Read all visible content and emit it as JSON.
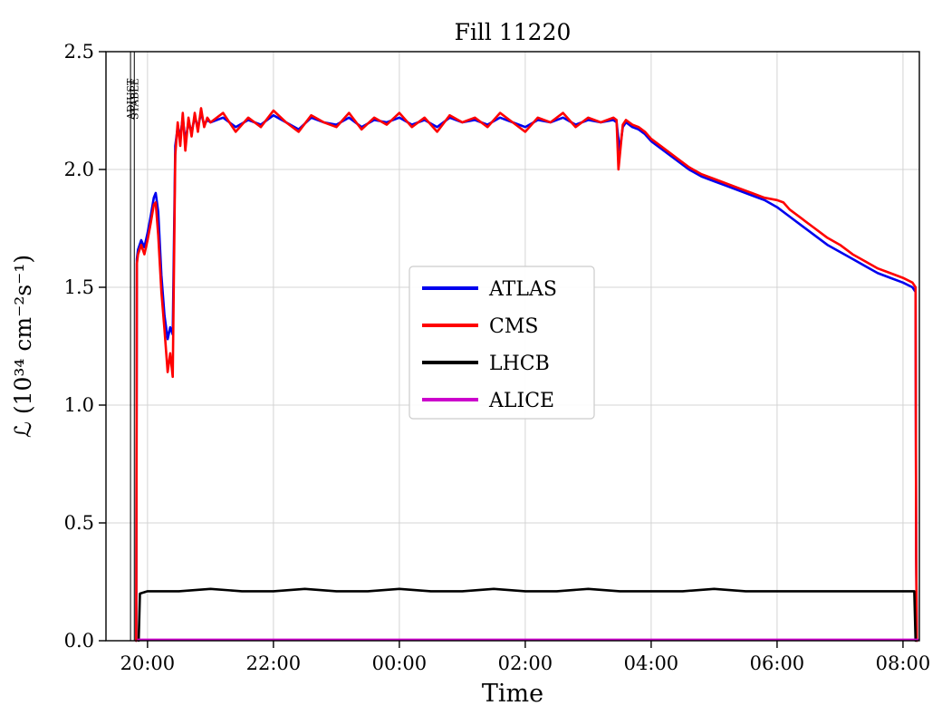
{
  "chart_data": {
    "type": "line",
    "title": "Fill 11220",
    "xlabel": "Time",
    "ylabel": "ℒ (10³⁴ cm⁻²s⁻¹)",
    "xlim": [
      19.34,
      32.26
    ],
    "ylim": [
      0,
      2.5
    ],
    "grid": true,
    "legend_position": "center",
    "x_ticks": [
      {
        "v": 20,
        "label": "20:00"
      },
      {
        "v": 22,
        "label": "22:00"
      },
      {
        "v": 24,
        "label": "00:00"
      },
      {
        "v": 26,
        "label": "02:00"
      },
      {
        "v": 28,
        "label": "04:00"
      },
      {
        "v": 30,
        "label": "06:00"
      },
      {
        "v": 32,
        "label": "08:00"
      }
    ],
    "y_ticks": [
      {
        "v": 0.0,
        "label": "0.0"
      },
      {
        "v": 0.5,
        "label": "0.5"
      },
      {
        "v": 1.0,
        "label": "1.0"
      },
      {
        "v": 1.5,
        "label": "1.5"
      },
      {
        "v": 2.0,
        "label": "2.0"
      },
      {
        "v": 2.5,
        "label": "2.5"
      }
    ],
    "annotations": [
      {
        "label": "ADJUST",
        "t": 19.73
      },
      {
        "label": "STABLE",
        "t": 19.79
      }
    ],
    "series": [
      {
        "name": "ATLAS",
        "color": "#0000ee",
        "width": 2.6,
        "points": [
          [
            19.82,
            0.0
          ],
          [
            19.83,
            1.62
          ],
          [
            19.85,
            1.66
          ],
          [
            19.9,
            1.7
          ],
          [
            19.95,
            1.67
          ],
          [
            20.0,
            1.73
          ],
          [
            20.05,
            1.8
          ],
          [
            20.1,
            1.88
          ],
          [
            20.13,
            1.9
          ],
          [
            20.17,
            1.82
          ],
          [
            20.22,
            1.55
          ],
          [
            20.27,
            1.38
          ],
          [
            20.32,
            1.28
          ],
          [
            20.36,
            1.33
          ],
          [
            20.4,
            1.3
          ],
          [
            20.44,
            2.1
          ],
          [
            20.48,
            2.18
          ],
          [
            20.52,
            2.14
          ],
          [
            20.56,
            2.22
          ],
          [
            20.6,
            2.12
          ],
          [
            20.65,
            2.2
          ],
          [
            20.7,
            2.16
          ],
          [
            20.75,
            2.22
          ],
          [
            20.8,
            2.18
          ],
          [
            20.85,
            2.24
          ],
          [
            20.9,
            2.19
          ],
          [
            20.95,
            2.21
          ],
          [
            21.0,
            2.2
          ],
          [
            21.2,
            2.22
          ],
          [
            21.4,
            2.18
          ],
          [
            21.6,
            2.21
          ],
          [
            21.8,
            2.19
          ],
          [
            22.0,
            2.23
          ],
          [
            22.2,
            2.2
          ],
          [
            22.4,
            2.17
          ],
          [
            22.6,
            2.22
          ],
          [
            22.8,
            2.2
          ],
          [
            23.0,
            2.19
          ],
          [
            23.2,
            2.22
          ],
          [
            23.4,
            2.18
          ],
          [
            23.6,
            2.21
          ],
          [
            23.8,
            2.2
          ],
          [
            24.0,
            2.22
          ],
          [
            24.2,
            2.19
          ],
          [
            24.4,
            2.21
          ],
          [
            24.6,
            2.18
          ],
          [
            24.8,
            2.22
          ],
          [
            25.0,
            2.2
          ],
          [
            25.2,
            2.21
          ],
          [
            25.4,
            2.19
          ],
          [
            25.6,
            2.22
          ],
          [
            25.8,
            2.2
          ],
          [
            26.0,
            2.18
          ],
          [
            26.2,
            2.21
          ],
          [
            26.4,
            2.2
          ],
          [
            26.6,
            2.22
          ],
          [
            26.8,
            2.19
          ],
          [
            27.0,
            2.21
          ],
          [
            27.2,
            2.2
          ],
          [
            27.4,
            2.21
          ],
          [
            27.45,
            2.2
          ],
          [
            27.5,
            2.08
          ],
          [
            27.55,
            2.18
          ],
          [
            27.6,
            2.2
          ],
          [
            27.7,
            2.18
          ],
          [
            27.8,
            2.17
          ],
          [
            27.9,
            2.15
          ],
          [
            28.0,
            2.12
          ],
          [
            28.2,
            2.08
          ],
          [
            28.4,
            2.04
          ],
          [
            28.6,
            2.0
          ],
          [
            28.8,
            1.97
          ],
          [
            29.0,
            1.95
          ],
          [
            29.2,
            1.93
          ],
          [
            29.4,
            1.91
          ],
          [
            29.6,
            1.89
          ],
          [
            29.8,
            1.87
          ],
          [
            30.0,
            1.84
          ],
          [
            30.2,
            1.8
          ],
          [
            30.4,
            1.76
          ],
          [
            30.6,
            1.72
          ],
          [
            30.8,
            1.68
          ],
          [
            31.0,
            1.65
          ],
          [
            31.2,
            1.62
          ],
          [
            31.4,
            1.59
          ],
          [
            31.6,
            1.56
          ],
          [
            31.8,
            1.54
          ],
          [
            32.0,
            1.52
          ],
          [
            32.15,
            1.5
          ],
          [
            32.2,
            1.48
          ],
          [
            32.21,
            0.35
          ],
          [
            32.22,
            0.0
          ]
        ]
      },
      {
        "name": "CMS",
        "color": "#ff0000",
        "width": 2.6,
        "points": [
          [
            19.82,
            0.0
          ],
          [
            19.83,
            1.6
          ],
          [
            19.85,
            1.64
          ],
          [
            19.9,
            1.68
          ],
          [
            19.95,
            1.64
          ],
          [
            20.0,
            1.7
          ],
          [
            20.05,
            1.77
          ],
          [
            20.1,
            1.85
          ],
          [
            20.13,
            1.86
          ],
          [
            20.17,
            1.72
          ],
          [
            20.22,
            1.48
          ],
          [
            20.27,
            1.32
          ],
          [
            20.32,
            1.14
          ],
          [
            20.36,
            1.22
          ],
          [
            20.4,
            1.12
          ],
          [
            20.44,
            2.06
          ],
          [
            20.48,
            2.2
          ],
          [
            20.52,
            2.1
          ],
          [
            20.56,
            2.24
          ],
          [
            20.6,
            2.08
          ],
          [
            20.65,
            2.22
          ],
          [
            20.7,
            2.14
          ],
          [
            20.75,
            2.24
          ],
          [
            20.8,
            2.16
          ],
          [
            20.85,
            2.26
          ],
          [
            20.9,
            2.18
          ],
          [
            20.95,
            2.22
          ],
          [
            21.0,
            2.2
          ],
          [
            21.2,
            2.24
          ],
          [
            21.4,
            2.16
          ],
          [
            21.6,
            2.22
          ],
          [
            21.8,
            2.18
          ],
          [
            22.0,
            2.25
          ],
          [
            22.2,
            2.2
          ],
          [
            22.4,
            2.16
          ],
          [
            22.6,
            2.23
          ],
          [
            22.8,
            2.2
          ],
          [
            23.0,
            2.18
          ],
          [
            23.2,
            2.24
          ],
          [
            23.4,
            2.17
          ],
          [
            23.6,
            2.22
          ],
          [
            23.8,
            2.19
          ],
          [
            24.0,
            2.24
          ],
          [
            24.2,
            2.18
          ],
          [
            24.4,
            2.22
          ],
          [
            24.6,
            2.16
          ],
          [
            24.8,
            2.23
          ],
          [
            25.0,
            2.2
          ],
          [
            25.2,
            2.22
          ],
          [
            25.4,
            2.18
          ],
          [
            25.6,
            2.24
          ],
          [
            25.8,
            2.2
          ],
          [
            26.0,
            2.16
          ],
          [
            26.2,
            2.22
          ],
          [
            26.4,
            2.2
          ],
          [
            26.6,
            2.24
          ],
          [
            26.8,
            2.18
          ],
          [
            27.0,
            2.22
          ],
          [
            27.2,
            2.2
          ],
          [
            27.4,
            2.22
          ],
          [
            27.45,
            2.21
          ],
          [
            27.48,
            2.0
          ],
          [
            27.55,
            2.19
          ],
          [
            27.6,
            2.21
          ],
          [
            27.7,
            2.19
          ],
          [
            27.8,
            2.18
          ],
          [
            27.9,
            2.16
          ],
          [
            28.0,
            2.13
          ],
          [
            28.2,
            2.09
          ],
          [
            28.4,
            2.05
          ],
          [
            28.6,
            2.01
          ],
          [
            28.8,
            1.98
          ],
          [
            29.0,
            1.96
          ],
          [
            29.2,
            1.94
          ],
          [
            29.4,
            1.92
          ],
          [
            29.6,
            1.9
          ],
          [
            29.8,
            1.88
          ],
          [
            30.0,
            1.87
          ],
          [
            30.1,
            1.86
          ],
          [
            30.2,
            1.83
          ],
          [
            30.4,
            1.79
          ],
          [
            30.6,
            1.75
          ],
          [
            30.8,
            1.71
          ],
          [
            31.0,
            1.68
          ],
          [
            31.2,
            1.64
          ],
          [
            31.4,
            1.61
          ],
          [
            31.6,
            1.58
          ],
          [
            31.8,
            1.56
          ],
          [
            32.0,
            1.54
          ],
          [
            32.15,
            1.52
          ],
          [
            32.2,
            1.5
          ],
          [
            32.21,
            0.35
          ],
          [
            32.22,
            0.0
          ]
        ]
      },
      {
        "name": "LHCB",
        "color": "#000000",
        "width": 2.6,
        "points": [
          [
            19.86,
            0.0
          ],
          [
            19.88,
            0.2
          ],
          [
            20.0,
            0.21
          ],
          [
            20.5,
            0.21
          ],
          [
            21.0,
            0.22
          ],
          [
            21.5,
            0.21
          ],
          [
            22.0,
            0.21
          ],
          [
            22.5,
            0.22
          ],
          [
            23.0,
            0.21
          ],
          [
            23.5,
            0.21
          ],
          [
            24.0,
            0.22
          ],
          [
            24.5,
            0.21
          ],
          [
            25.0,
            0.21
          ],
          [
            25.5,
            0.22
          ],
          [
            26.0,
            0.21
          ],
          [
            26.5,
            0.21
          ],
          [
            27.0,
            0.22
          ],
          [
            27.5,
            0.21
          ],
          [
            28.0,
            0.21
          ],
          [
            28.5,
            0.21
          ],
          [
            29.0,
            0.22
          ],
          [
            29.5,
            0.21
          ],
          [
            30.0,
            0.21
          ],
          [
            30.5,
            0.21
          ],
          [
            31.0,
            0.21
          ],
          [
            31.5,
            0.21
          ],
          [
            32.0,
            0.21
          ],
          [
            32.18,
            0.21
          ],
          [
            32.2,
            0.0
          ]
        ]
      },
      {
        "name": "ALICE",
        "color": "#cc00cc",
        "width": 2.2,
        "points": [
          [
            19.85,
            0.005
          ],
          [
            32.24,
            0.005
          ]
        ]
      }
    ]
  }
}
